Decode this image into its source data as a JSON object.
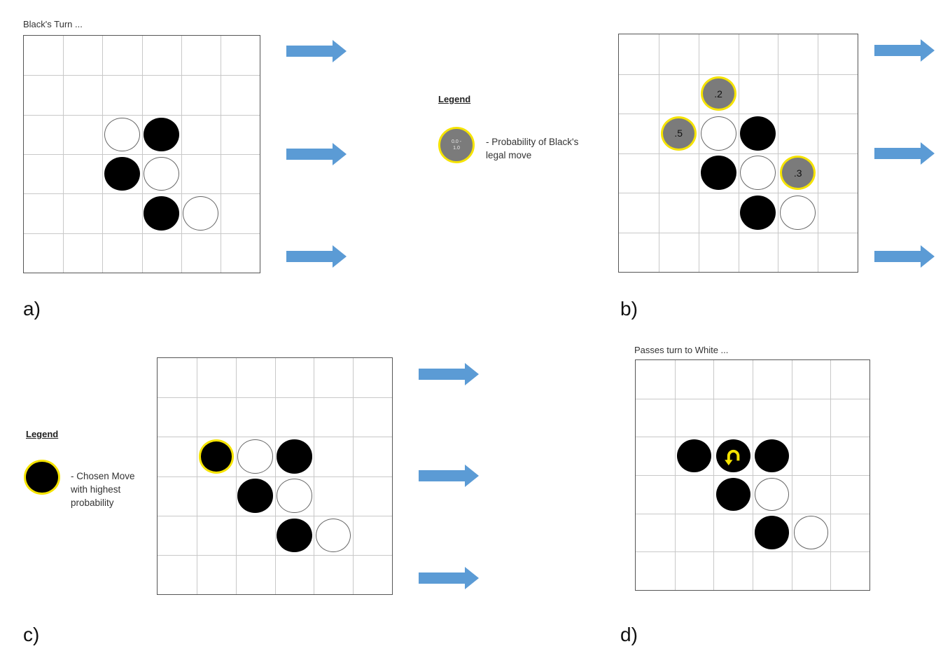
{
  "colors": {
    "arrow": "#5b9bd5",
    "highlight": "#f5e300",
    "prob_fill": "#7b7b7b",
    "black_stone": "#000000",
    "white_stone": "#ffffff",
    "grid_line": "#c8c8c8",
    "board_border": "#555555"
  },
  "panels": [
    {
      "id": "a",
      "label": "a)",
      "caption": "Black's Turn ...",
      "rows": 6,
      "cols": 6,
      "stones": [
        {
          "row": 2,
          "col": 2,
          "kind": "white"
        },
        {
          "row": 2,
          "col": 3,
          "kind": "black"
        },
        {
          "row": 3,
          "col": 2,
          "kind": "black"
        },
        {
          "row": 3,
          "col": 3,
          "kind": "white"
        },
        {
          "row": 4,
          "col": 3,
          "kind": "black"
        },
        {
          "row": 4,
          "col": 4,
          "kind": "white"
        }
      ]
    },
    {
      "id": "b",
      "label": "b)",
      "caption": "",
      "rows": 6,
      "cols": 6,
      "stones": [
        {
          "row": 1,
          "col": 2,
          "kind": "prob",
          "text": ".2"
        },
        {
          "row": 2,
          "col": 1,
          "kind": "prob",
          "text": ".5"
        },
        {
          "row": 2,
          "col": 2,
          "kind": "white"
        },
        {
          "row": 2,
          "col": 3,
          "kind": "black"
        },
        {
          "row": 3,
          "col": 2,
          "kind": "black"
        },
        {
          "row": 3,
          "col": 3,
          "kind": "white"
        },
        {
          "row": 3,
          "col": 4,
          "kind": "prob",
          "text": ".3"
        },
        {
          "row": 4,
          "col": 3,
          "kind": "black"
        },
        {
          "row": 4,
          "col": 4,
          "kind": "white"
        }
      ]
    },
    {
      "id": "c",
      "label": "c)",
      "caption": "",
      "rows": 6,
      "cols": 6,
      "stones": [
        {
          "row": 2,
          "col": 1,
          "kind": "chosen"
        },
        {
          "row": 2,
          "col": 2,
          "kind": "white"
        },
        {
          "row": 2,
          "col": 3,
          "kind": "black"
        },
        {
          "row": 3,
          "col": 2,
          "kind": "black"
        },
        {
          "row": 3,
          "col": 3,
          "kind": "white"
        },
        {
          "row": 4,
          "col": 3,
          "kind": "black"
        },
        {
          "row": 4,
          "col": 4,
          "kind": "white"
        }
      ]
    },
    {
      "id": "d",
      "label": "d)",
      "caption": "Passes turn to White ...",
      "rows": 6,
      "cols": 6,
      "stones": [
        {
          "row": 2,
          "col": 1,
          "kind": "black"
        },
        {
          "row": 2,
          "col": 2,
          "kind": "flipped",
          "icon": "flip-arrow-icon"
        },
        {
          "row": 2,
          "col": 3,
          "kind": "black"
        },
        {
          "row": 3,
          "col": 2,
          "kind": "black"
        },
        {
          "row": 3,
          "col": 3,
          "kind": "white"
        },
        {
          "row": 4,
          "col": 3,
          "kind": "black"
        },
        {
          "row": 4,
          "col": 4,
          "kind": "white"
        }
      ]
    }
  ],
  "legend_b": {
    "title": "Legend",
    "symbol_text": "0.0 -\n1.0",
    "description": "-   Probability of Black's\nlegal move"
  },
  "legend_c": {
    "title": "Legend",
    "description": "-   Chosen Move\nwith highest\nprobability"
  }
}
